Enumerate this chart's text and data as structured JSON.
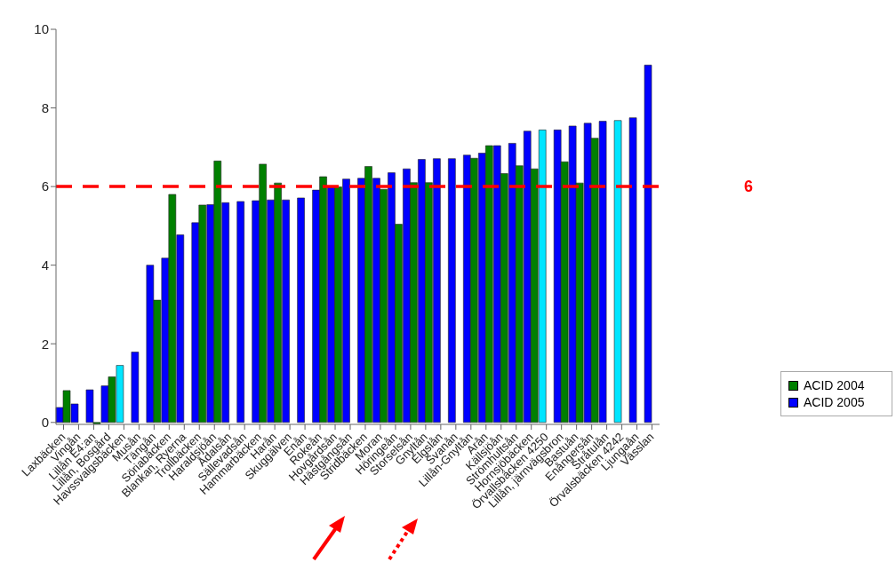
{
  "chart_data": {
    "type": "bar",
    "categories": [
      "Laxbäcken",
      "Vingån",
      "Lillån E4:an",
      "Lillån, Bosgård",
      "Havssvalgsbäcken",
      "Musån",
      "Tängån",
      "Söriabäcken",
      "Blankan, Ryerna",
      "Trollbäcken",
      "Haraldsjöån",
      "Ådalsån",
      "Sällevadsån",
      "Hammarbäcken",
      "Harån",
      "Skuggälven",
      "Enån",
      "Rokeån",
      "Hovgårdsån",
      "Hästgångsån",
      "Stridbäcken",
      "Moran",
      "Höringeån",
      "Storselsån",
      "Gnyltån",
      "Elgslån",
      "Svanån",
      "Lillån-Gnyltån",
      "Arån",
      "Källsjöån",
      "Strömhultsån",
      "Hornsjöbäcken",
      "Örvallsbäcken 4250",
      "Lillån, järnvägsbron",
      "Bastuån",
      "Enångersån",
      "Stråtulån",
      "Örvalsbäcken 4242",
      "Ljungaån",
      "Vässlan"
    ],
    "series": [
      {
        "name": "ACID 2005",
        "color": "#0000ff",
        "colors": [
          "#0000ff",
          "#0000ff",
          "#0000ff",
          "#0000ff",
          "#00e5ff",
          "#0000ff",
          "#0000ff",
          "#0000ff",
          "#0000ff",
          "#0000ff",
          "#0000ff",
          "#0000ff",
          "#0000ff",
          "#0000ff",
          "#0000ff",
          "#0000ff",
          "#0000ff",
          "#0000ff",
          "#0000ff",
          "#0000ff",
          "#0000ff",
          "#0000ff",
          "#0000ff",
          "#0000ff",
          "#0000ff",
          "#0000ff",
          "#0000ff",
          "#0000ff",
          "#0000ff",
          "#0000ff",
          "#0000ff",
          "#0000ff",
          "#00e5ff",
          "#0000ff",
          "#0000ff",
          "#0000ff",
          "#0000ff",
          "#00e5ff",
          "#0000ff",
          "#0000ff"
        ],
        "values": [
          0.38,
          0.47,
          0.83,
          0.93,
          1.45,
          1.79,
          4.0,
          4.18,
          4.77,
          5.08,
          5.54,
          5.59,
          5.62,
          5.64,
          5.66,
          5.66,
          5.71,
          5.91,
          5.98,
          6.19,
          6.21,
          6.21,
          6.35,
          6.45,
          6.69,
          6.71,
          6.71,
          6.8,
          6.85,
          7.04,
          7.1,
          7.41,
          7.44,
          7.44,
          7.54,
          7.61,
          7.66,
          7.68,
          7.75,
          9.09
        ]
      },
      {
        "name": "ACID 2004",
        "color": "#008000",
        "values": [
          0.81,
          null,
          -0.04,
          1.16,
          null,
          null,
          3.11,
          5.8,
          null,
          5.53,
          6.65,
          null,
          null,
          6.57,
          6.09,
          null,
          null,
          6.25,
          5.99,
          null,
          6.51,
          5.93,
          5.04,
          6.1,
          6.1,
          null,
          null,
          6.72,
          7.04,
          6.33,
          6.53,
          6.45,
          null,
          6.63,
          6.09,
          7.23,
          null,
          null,
          null,
          null
        ]
      }
    ],
    "ylim": [
      -0.05,
      10
    ],
    "yticks": [
      0,
      2,
      4,
      6,
      8,
      10
    ],
    "grid": false,
    "legend": "right",
    "ref_lines": [
      {
        "axis": "y",
        "value": 6,
        "label": "6",
        "color": "#ff0000",
        "line_style": "dashed"
      }
    ]
  }
}
